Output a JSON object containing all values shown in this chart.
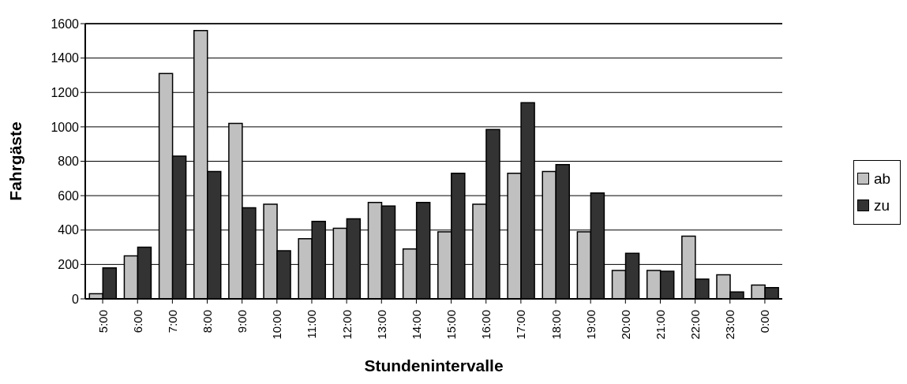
{
  "chart_data": {
    "type": "bar",
    "xlabel": "Stundenintervalle",
    "ylabel": "Fahrgäste",
    "categories": [
      "5:00",
      "6:00",
      "7:00",
      "8:00",
      "9:00",
      "10:00",
      "11:00",
      "12:00",
      "13:00",
      "14:00",
      "15:00",
      "16:00",
      "17:00",
      "18:00",
      "19:00",
      "20:00",
      "21:00",
      "22:00",
      "23:00",
      "0:00"
    ],
    "series": [
      {
        "name": "ab",
        "color": "#c0c0c0",
        "values": [
          30,
          250,
          1310,
          1560,
          1020,
          550,
          350,
          410,
          560,
          290,
          390,
          550,
          730,
          740,
          390,
          165,
          165,
          365,
          140,
          80
        ]
      },
      {
        "name": "zu",
        "color": "#333333",
        "values": [
          180,
          300,
          830,
          740,
          530,
          280,
          450,
          465,
          540,
          560,
          730,
          985,
          1140,
          780,
          615,
          265,
          160,
          115,
          40,
          65
        ]
      }
    ],
    "ylim": [
      0,
      1600
    ],
    "yticks": [
      0,
      200,
      400,
      600,
      800,
      1000,
      1200,
      1400,
      1600
    ],
    "grid": "y",
    "legend": "right"
  }
}
